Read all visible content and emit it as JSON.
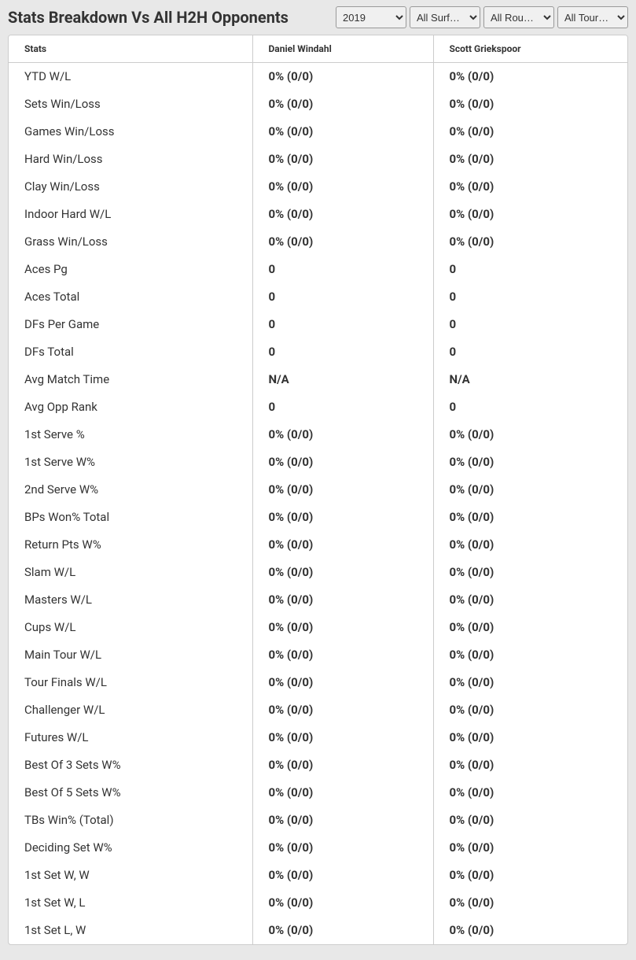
{
  "header": {
    "title": "Stats Breakdown Vs All H2H Opponents"
  },
  "filters": {
    "year": {
      "selected": "2019",
      "options": [
        "2019"
      ]
    },
    "surface": {
      "selected": "All Surf…",
      "options": [
        "All Surf…"
      ]
    },
    "round": {
      "selected": "All Rou…",
      "options": [
        "All Rou…"
      ]
    },
    "tournament": {
      "selected": "All Tour…",
      "options": [
        "All Tour…"
      ]
    }
  },
  "table": {
    "columns": [
      "Stats",
      "Daniel Windahl",
      "Scott Griekspoor"
    ],
    "rows": [
      [
        "YTD W/L",
        "0% (0/0)",
        "0% (0/0)"
      ],
      [
        "Sets Win/Loss",
        "0% (0/0)",
        "0% (0/0)"
      ],
      [
        "Games Win/Loss",
        "0% (0/0)",
        "0% (0/0)"
      ],
      [
        "Hard Win/Loss",
        "0% (0/0)",
        "0% (0/0)"
      ],
      [
        "Clay Win/Loss",
        "0% (0/0)",
        "0% (0/0)"
      ],
      [
        "Indoor Hard W/L",
        "0% (0/0)",
        "0% (0/0)"
      ],
      [
        "Grass Win/Loss",
        "0% (0/0)",
        "0% (0/0)"
      ],
      [
        "Aces Pg",
        "0",
        "0"
      ],
      [
        "Aces Total",
        "0",
        "0"
      ],
      [
        "DFs Per Game",
        "0",
        "0"
      ],
      [
        "DFs Total",
        "0",
        "0"
      ],
      [
        "Avg Match Time",
        "N/A",
        "N/A"
      ],
      [
        "Avg Opp Rank",
        "0",
        "0"
      ],
      [
        "1st Serve %",
        "0% (0/0)",
        "0% (0/0)"
      ],
      [
        "1st Serve W%",
        "0% (0/0)",
        "0% (0/0)"
      ],
      [
        "2nd Serve W%",
        "0% (0/0)",
        "0% (0/0)"
      ],
      [
        "BPs Won% Total",
        "0% (0/0)",
        "0% (0/0)"
      ],
      [
        "Return Pts W%",
        "0% (0/0)",
        "0% (0/0)"
      ],
      [
        "Slam W/L",
        "0% (0/0)",
        "0% (0/0)"
      ],
      [
        "Masters W/L",
        "0% (0/0)",
        "0% (0/0)"
      ],
      [
        "Cups W/L",
        "0% (0/0)",
        "0% (0/0)"
      ],
      [
        "Main Tour W/L",
        "0% (0/0)",
        "0% (0/0)"
      ],
      [
        "Tour Finals W/L",
        "0% (0/0)",
        "0% (0/0)"
      ],
      [
        "Challenger W/L",
        "0% (0/0)",
        "0% (0/0)"
      ],
      [
        "Futures W/L",
        "0% (0/0)",
        "0% (0/0)"
      ],
      [
        "Best Of 3 Sets W%",
        "0% (0/0)",
        "0% (0/0)"
      ],
      [
        "Best Of 5 Sets W%",
        "0% (0/0)",
        "0% (0/0)"
      ],
      [
        "TBs Win% (Total)",
        "0% (0/0)",
        "0% (0/0)"
      ],
      [
        "Deciding Set W%",
        "0% (0/0)",
        "0% (0/0)"
      ],
      [
        "1st Set W, W",
        "0% (0/0)",
        "0% (0/0)"
      ],
      [
        "1st Set W, L",
        "0% (0/0)",
        "0% (0/0)"
      ],
      [
        "1st Set L, W",
        "0% (0/0)",
        "0% (0/0)"
      ]
    ]
  },
  "colors": {
    "background": "#e8e8e8",
    "table_background": "#ffffff",
    "border": "#cccccc",
    "text": "#333333",
    "select_bg": "#f0f0f0",
    "select_border": "#999999"
  }
}
